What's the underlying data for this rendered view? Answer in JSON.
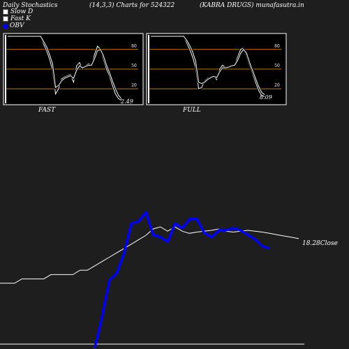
{
  "header": {
    "left": "Daily Stochastics",
    "center": "(14,3,3) Charts for 524322",
    "right": "(KABRA DRUGS) munafasutra.in"
  },
  "legend": {
    "slow_d": "Slow  D",
    "fast_k": "Fast K",
    "obv": "OBV"
  },
  "colors": {
    "background": "#1e1e1e",
    "panel_bg": "#000000",
    "level_line": "#c87800",
    "stoch_line": "#ffffff",
    "price_line": "#ffffff",
    "obv_line": "#0000ff"
  },
  "chart_data": [
    {
      "type": "line",
      "panel": "FAST",
      "label": "FAST",
      "yticks": [
        80,
        50,
        20
      ],
      "last_value_label": "2.49",
      "ylim": [
        0,
        100
      ],
      "series": [
        {
          "values": [
            100,
            100,
            100,
            100,
            100,
            100,
            100,
            100,
            100,
            100,
            100,
            100,
            88,
            78,
            65,
            48,
            12,
            20,
            35,
            38,
            40,
            42,
            30,
            55,
            60,
            50,
            55,
            58,
            55,
            72,
            85,
            80,
            65,
            50,
            40,
            25,
            12,
            5,
            2.49
          ]
        },
        {
          "values": [
            100,
            100,
            100,
            100,
            100,
            100,
            100,
            100,
            100,
            100,
            100,
            100,
            92,
            84,
            72,
            58,
            22,
            25,
            32,
            36,
            38,
            40,
            36,
            48,
            55,
            52,
            54,
            56,
            56,
            66,
            78,
            80,
            70,
            56,
            45,
            32,
            20,
            10,
            5
          ]
        }
      ]
    },
    {
      "type": "line",
      "panel": "FULL",
      "label": "FULL",
      "yticks": [
        80,
        50,
        20
      ],
      "last_value_label": "8.09",
      "ylim": [
        0,
        100
      ],
      "series": [
        {
          "values": [
            100,
            100,
            100,
            100,
            100,
            100,
            100,
            100,
            100,
            100,
            100,
            100,
            90,
            80,
            68,
            52,
            20,
            22,
            32,
            36,
            38,
            40,
            34,
            50,
            56,
            52,
            54,
            56,
            56,
            68,
            80,
            82,
            70,
            56,
            44,
            30,
            18,
            10,
            8.09
          ]
        },
        {
          "values": [
            100,
            100,
            100,
            100,
            100,
            100,
            100,
            100,
            100,
            100,
            100,
            100,
            94,
            86,
            76,
            62,
            30,
            28,
            30,
            34,
            37,
            39,
            37,
            46,
            52,
            52,
            53,
            55,
            56,
            63,
            74,
            80,
            74,
            60,
            48,
            36,
            24,
            15,
            11
          ]
        }
      ]
    },
    {
      "type": "line",
      "panel": "price_obv",
      "close_label": "18.28Close",
      "series": [
        {
          "name": "Close",
          "values": [
            8,
            8,
            8,
            9,
            9,
            9,
            9,
            10,
            10,
            10,
            10,
            11,
            11,
            12,
            13,
            14,
            15,
            16,
            17,
            18,
            19,
            20.5,
            21,
            20,
            21,
            20,
            19.5,
            19.8,
            20,
            20.2,
            20.5,
            20,
            19.8,
            20,
            20.2,
            20,
            19.8,
            19.5,
            19.2,
            18.9,
            18.6,
            18.28
          ]
        },
        {
          "name": "OBV",
          "values": [
            null,
            null,
            null,
            null,
            null,
            null,
            null,
            null,
            null,
            null,
            null,
            null,
            null,
            0,
            14,
            30,
            33,
            42,
            55,
            56,
            60,
            50,
            49,
            47,
            55,
            53,
            57,
            57,
            51,
            49,
            52,
            52,
            53,
            52,
            50,
            48,
            45,
            44
          ]
        }
      ]
    }
  ]
}
